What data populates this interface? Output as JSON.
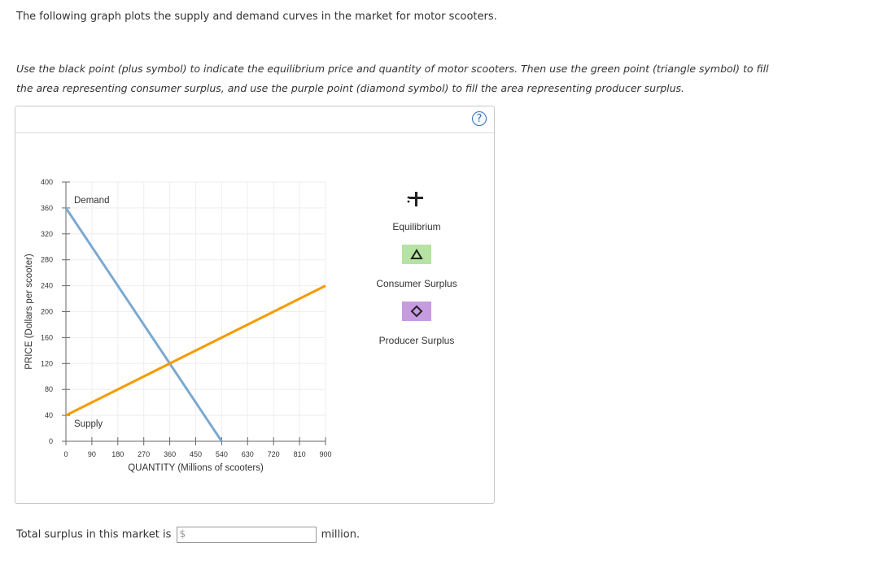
{
  "intro_text": "The following graph plots the supply and demand curves in the market for motor scooters.",
  "instruction_line1": "Use the black point (plus symbol) to indicate the equilibrium price and quantity of motor scooters. Then use the green point (triangle symbol) to fill",
  "instruction_line2": "the area representing consumer surplus, and use the purple point (diamond symbol) to fill the area representing producer surplus.",
  "help_label": "?",
  "legend": {
    "equilibrium_label": "Equilibrium",
    "consumer_surplus_label": "Consumer Surplus",
    "producer_surplus_label": "Producer Surplus",
    "consumer_color": "#b6e3a1",
    "producer_color": "#c79be0"
  },
  "bottom": {
    "prefix": "Total surplus in this market is",
    "currency_symbol": "$",
    "input_value": "",
    "suffix": "million."
  },
  "chart_data": {
    "type": "line",
    "xlabel": "QUANTITY (Millions of scooters)",
    "ylabel": "PRICE (Dollars per scooter)",
    "xlim": [
      0,
      900
    ],
    "ylim": [
      0,
      400
    ],
    "xticks": [
      0,
      90,
      180,
      270,
      360,
      450,
      540,
      630,
      720,
      810,
      900
    ],
    "yticks": [
      0,
      40,
      80,
      120,
      160,
      200,
      240,
      280,
      320,
      360,
      400
    ],
    "grid": true,
    "series": [
      {
        "name": "Demand",
        "color": "#7ba9d0",
        "points": [
          [
            0,
            360
          ],
          [
            540,
            0
          ]
        ]
      },
      {
        "name": "Supply",
        "color": "#f59a00",
        "points": [
          [
            0,
            40
          ],
          [
            900,
            240
          ]
        ]
      }
    ]
  }
}
